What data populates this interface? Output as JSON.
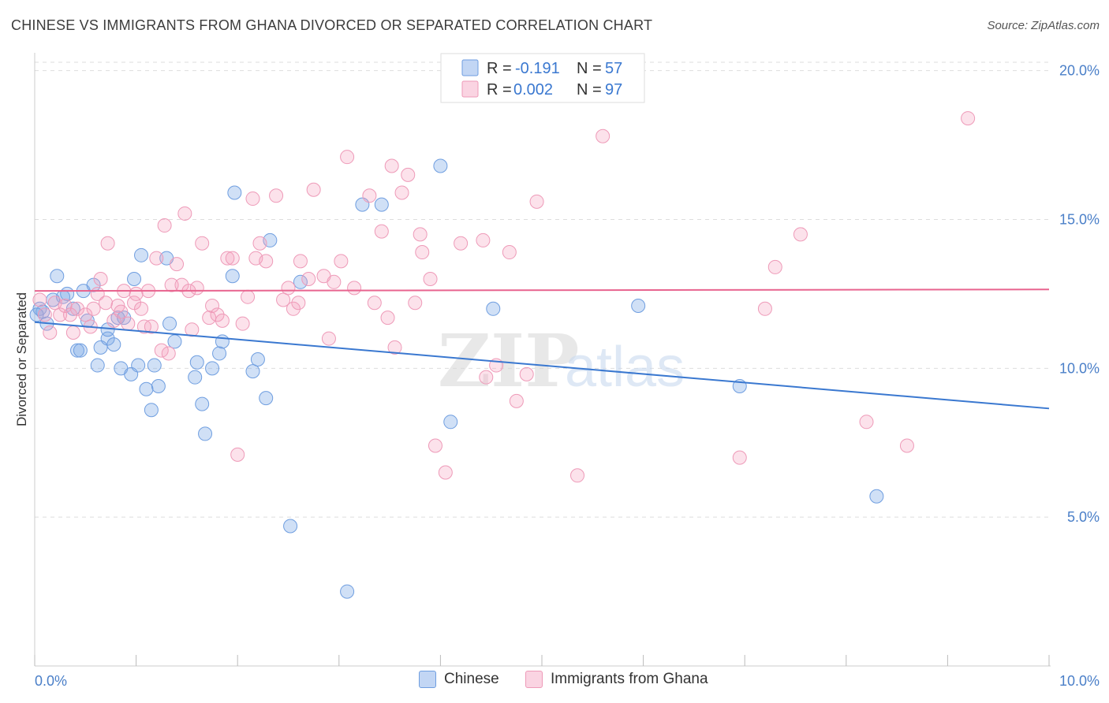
{
  "title": "CHINESE VS IMMIGRANTS FROM GHANA DIVORCED OR SEPARATED CORRELATION CHART",
  "source": "Source: ZipAtlas.com",
  "watermark": {
    "zip": "ZIP",
    "atlas": "atlas"
  },
  "colors": {
    "chinese_fill": "rgba(120,165,230,0.35)",
    "chinese_stroke": "#6f9ee0",
    "chinese_line": "#3a78d0",
    "ghana_fill": "rgba(245,160,190,0.30)",
    "ghana_stroke": "#ee9ab8",
    "ghana_line": "#e8648f",
    "axis_label": "#4a7fc8",
    "grid": "#dddddd"
  },
  "legend": {
    "rows": [
      {
        "r_label": "R =",
        "r_value": "-0.191",
        "n_label": "N =",
        "n_value": "57"
      },
      {
        "r_label": "R =",
        "r_value": "0.002",
        "n_label": "N =",
        "n_value": "97"
      }
    ]
  },
  "bottom_legend": {
    "chinese": "Chinese",
    "ghana": "Immigrants from Ghana"
  },
  "chart_data": {
    "type": "scatter",
    "xlabel": "",
    "ylabel": "Divorced or Separated",
    "xlim": [
      0,
      10
    ],
    "ylim": [
      0,
      20.6
    ],
    "x_tick_labels": [
      "0.0%",
      "10.0%"
    ],
    "y_ticks": [
      5,
      10,
      15,
      20
    ],
    "y_tick_labels": [
      "5.0%",
      "10.0%",
      "15.0%",
      "20.0%"
    ],
    "grid": true,
    "legend_position": "top-center",
    "series": [
      {
        "name": "Chinese",
        "trend": [
          [
            0,
            11.55
          ],
          [
            10,
            8.65
          ]
        ],
        "points": [
          [
            0.05,
            12.0
          ],
          [
            0.08,
            11.9
          ],
          [
            0.12,
            11.5
          ],
          [
            0.18,
            12.3
          ],
          [
            0.22,
            13.1
          ],
          [
            0.28,
            12.4
          ],
          [
            0.32,
            12.5
          ],
          [
            0.38,
            12.0
          ],
          [
            0.42,
            10.6
          ],
          [
            0.45,
            10.6
          ],
          [
            0.48,
            12.6
          ],
          [
            0.52,
            11.6
          ],
          [
            0.58,
            12.8
          ],
          [
            0.62,
            10.1
          ],
          [
            0.65,
            10.7
          ],
          [
            0.72,
            11.0
          ],
          [
            0.72,
            11.3
          ],
          [
            0.78,
            10.8
          ],
          [
            0.82,
            11.7
          ],
          [
            0.85,
            10.0
          ],
          [
            0.88,
            11.7
          ],
          [
            0.95,
            9.8
          ],
          [
            0.98,
            13.0
          ],
          [
            1.02,
            10.1
          ],
          [
            1.05,
            13.8
          ],
          [
            1.1,
            9.3
          ],
          [
            1.15,
            8.6
          ],
          [
            1.18,
            10.1
          ],
          [
            1.22,
            9.4
          ],
          [
            1.3,
            13.7
          ],
          [
            1.33,
            11.5
          ],
          [
            1.38,
            10.9
          ],
          [
            1.58,
            9.7
          ],
          [
            1.6,
            10.2
          ],
          [
            1.65,
            8.8
          ],
          [
            1.68,
            7.8
          ],
          [
            1.75,
            10.0
          ],
          [
            1.82,
            10.5
          ],
          [
            1.85,
            10.9
          ],
          [
            1.95,
            13.1
          ],
          [
            1.97,
            15.9
          ],
          [
            2.15,
            9.9
          ],
          [
            2.2,
            10.3
          ],
          [
            2.28,
            9.0
          ],
          [
            2.32,
            14.3
          ],
          [
            2.52,
            4.7
          ],
          [
            2.62,
            12.9
          ],
          [
            3.08,
            2.5
          ],
          [
            3.23,
            15.5
          ],
          [
            3.42,
            15.5
          ],
          [
            4.0,
            16.8
          ],
          [
            4.1,
            8.2
          ],
          [
            4.52,
            12.0
          ],
          [
            5.95,
            12.1
          ],
          [
            6.95,
            9.4
          ],
          [
            8.3,
            5.7
          ],
          [
            0.02,
            11.8
          ]
        ]
      },
      {
        "name": "Immigrants from Ghana",
        "trend": [
          [
            0,
            12.6
          ],
          [
            10,
            12.65
          ]
        ],
        "points": [
          [
            0.05,
            12.3
          ],
          [
            0.1,
            11.8
          ],
          [
            0.15,
            11.2
          ],
          [
            0.2,
            12.2
          ],
          [
            0.25,
            11.8
          ],
          [
            0.3,
            12.1
          ],
          [
            0.35,
            11.8
          ],
          [
            0.38,
            11.2
          ],
          [
            0.42,
            12.0
          ],
          [
            0.5,
            11.8
          ],
          [
            0.55,
            11.4
          ],
          [
            0.58,
            12.0
          ],
          [
            0.62,
            12.5
          ],
          [
            0.65,
            13.0
          ],
          [
            0.7,
            12.2
          ],
          [
            0.72,
            14.2
          ],
          [
            0.78,
            11.6
          ],
          [
            0.82,
            12.1
          ],
          [
            0.85,
            11.9
          ],
          [
            0.88,
            12.6
          ],
          [
            0.92,
            11.5
          ],
          [
            0.98,
            12.2
          ],
          [
            1.0,
            12.5
          ],
          [
            1.05,
            12.0
          ],
          [
            1.08,
            11.4
          ],
          [
            1.12,
            12.6
          ],
          [
            1.15,
            11.4
          ],
          [
            1.2,
            13.7
          ],
          [
            1.25,
            10.6
          ],
          [
            1.28,
            14.8
          ],
          [
            1.32,
            10.5
          ],
          [
            1.35,
            12.8
          ],
          [
            1.4,
            13.5
          ],
          [
            1.45,
            12.8
          ],
          [
            1.48,
            15.2
          ],
          [
            1.52,
            12.6
          ],
          [
            1.55,
            11.3
          ],
          [
            1.6,
            12.7
          ],
          [
            1.65,
            14.2
          ],
          [
            1.72,
            11.7
          ],
          [
            1.75,
            12.1
          ],
          [
            1.8,
            11.8
          ],
          [
            1.85,
            11.6
          ],
          [
            1.9,
            13.7
          ],
          [
            1.95,
            13.7
          ],
          [
            2.0,
            7.1
          ],
          [
            2.05,
            11.5
          ],
          [
            2.1,
            12.4
          ],
          [
            2.15,
            15.7
          ],
          [
            2.18,
            13.7
          ],
          [
            2.22,
            14.2
          ],
          [
            2.28,
            13.6
          ],
          [
            2.38,
            15.8
          ],
          [
            2.45,
            12.3
          ],
          [
            2.5,
            12.7
          ],
          [
            2.55,
            12.0
          ],
          [
            2.6,
            12.2
          ],
          [
            2.62,
            13.6
          ],
          [
            2.7,
            13.0
          ],
          [
            2.75,
            16.0
          ],
          [
            2.85,
            13.1
          ],
          [
            2.9,
            11.0
          ],
          [
            2.95,
            12.9
          ],
          [
            3.02,
            13.6
          ],
          [
            3.08,
            17.1
          ],
          [
            3.15,
            12.7
          ],
          [
            3.3,
            15.8
          ],
          [
            3.35,
            12.2
          ],
          [
            3.42,
            14.6
          ],
          [
            3.48,
            11.7
          ],
          [
            3.52,
            16.8
          ],
          [
            3.55,
            10.7
          ],
          [
            3.62,
            15.9
          ],
          [
            3.68,
            16.5
          ],
          [
            3.75,
            12.2
          ],
          [
            3.8,
            14.5
          ],
          [
            3.82,
            13.9
          ],
          [
            3.9,
            13.0
          ],
          [
            3.95,
            7.4
          ],
          [
            4.05,
            6.5
          ],
          [
            4.2,
            14.2
          ],
          [
            4.45,
            9.7
          ],
          [
            4.42,
            14.3
          ],
          [
            4.55,
            10.1
          ],
          [
            4.68,
            13.9
          ],
          [
            4.75,
            8.9
          ],
          [
            4.85,
            9.8
          ],
          [
            4.95,
            15.6
          ],
          [
            5.35,
            6.4
          ],
          [
            5.6,
            17.8
          ],
          [
            6.95,
            7.0
          ],
          [
            7.2,
            12.0
          ],
          [
            7.3,
            13.4
          ],
          [
            7.55,
            14.5
          ],
          [
            8.2,
            8.2
          ],
          [
            8.6,
            7.4
          ],
          [
            9.2,
            18.4
          ]
        ]
      }
    ]
  }
}
